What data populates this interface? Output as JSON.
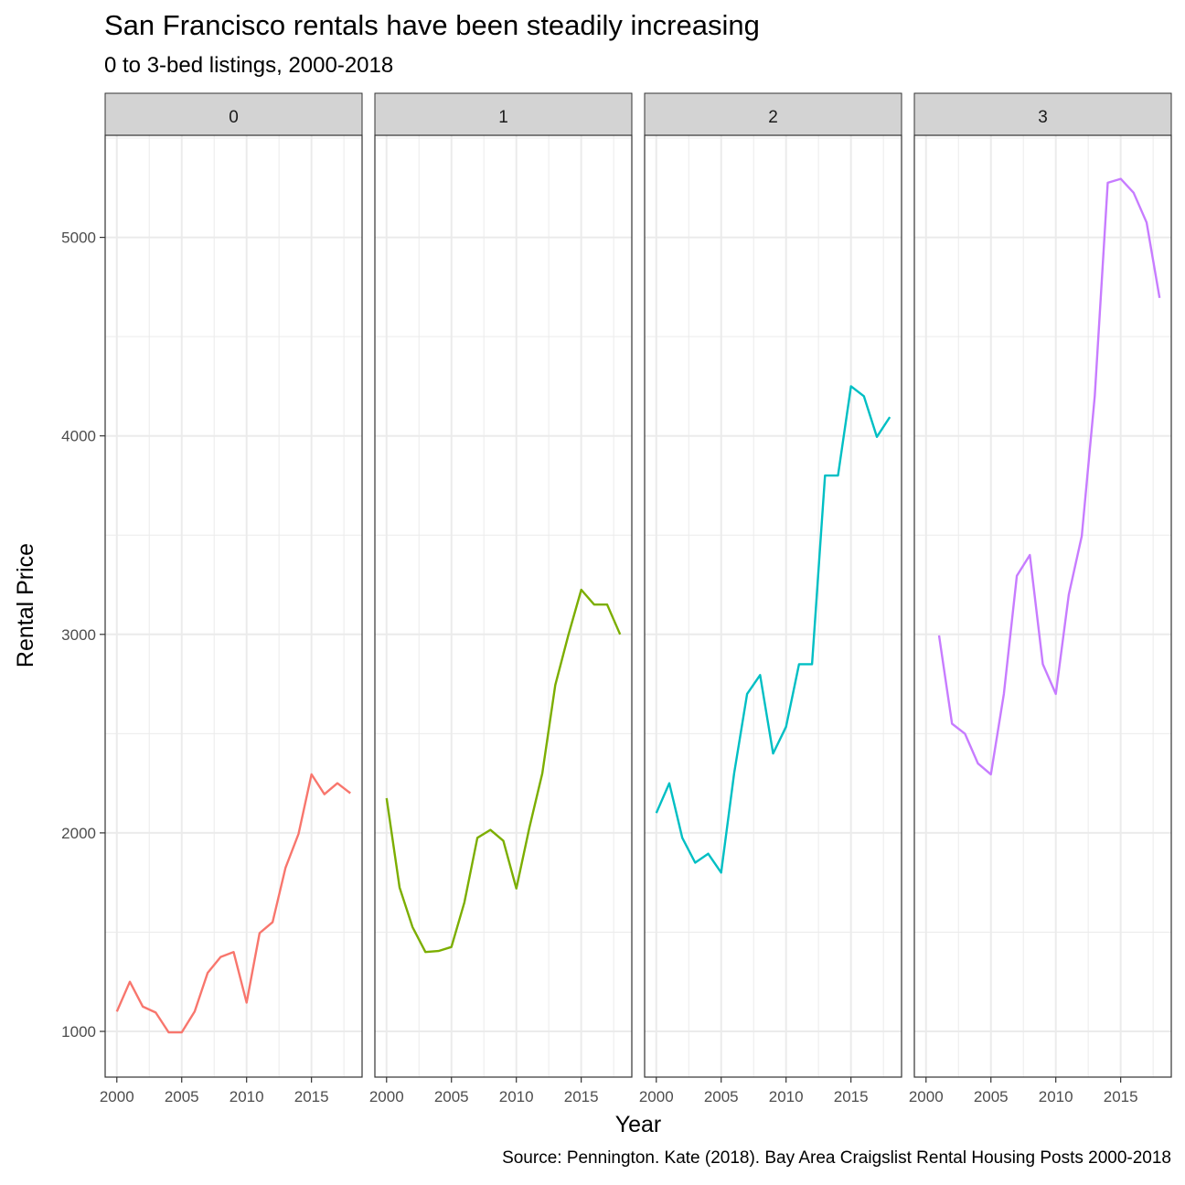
{
  "chart_data": {
    "type": "line",
    "title": "San Francisco rentals have been steadily increasing",
    "subtitle": "0 to 3-bed listings, 2000-2018",
    "caption": "Source: Pennington. Kate (2018). Bay Area Craigslist Rental Housing Posts 2000-2018",
    "xlabel": "Year",
    "ylabel": "Rental Price",
    "xlim": [
      2000,
      2018
    ],
    "ylim": [
      1000,
      5300
    ],
    "x_ticks": [
      2000,
      2005,
      2010,
      2015
    ],
    "y_ticks": [
      1000,
      2000,
      3000,
      4000,
      5000
    ],
    "grid": true,
    "facets": [
      {
        "label": "0",
        "color": "#F8766D",
        "x": [
          2000,
          2001,
          2002,
          2003,
          2004,
          2005,
          2006,
          2007,
          2008,
          2009,
          2010,
          2011,
          2012,
          2013,
          2014,
          2015,
          2016,
          2017,
          2018
        ],
        "values": [
          1100,
          1250,
          1125,
          1095,
          995,
          995,
          1100,
          1295,
          1375,
          1400,
          1145,
          1495,
          1550,
          1825,
          1995,
          2295,
          2195,
          2250,
          2200
        ]
      },
      {
        "label": "1",
        "color": "#7CAE00",
        "x": [
          2000,
          2001,
          2002,
          2003,
          2004,
          2005,
          2006,
          2007,
          2008,
          2009,
          2010,
          2011,
          2012,
          2013,
          2014,
          2015,
          2016,
          2017,
          2018
        ],
        "values": [
          2175,
          1725,
          1525,
          1400,
          1405,
          1425,
          1650,
          1975,
          2015,
          1960,
          1720,
          2025,
          2300,
          2745,
          2995,
          3225,
          3150,
          3150,
          3000
        ]
      },
      {
        "label": "2",
        "color": "#00BFC4",
        "x": [
          2000,
          2001,
          2002,
          2003,
          2004,
          2005,
          2006,
          2007,
          2008,
          2009,
          2010,
          2011,
          2012,
          2013,
          2014,
          2015,
          2016,
          2017,
          2018
        ],
        "values": [
          2100,
          2250,
          1975,
          1850,
          1895,
          1800,
          2300,
          2700,
          2795,
          2400,
          2535,
          2850,
          2850,
          3800,
          3800,
          4250,
          4200,
          3995,
          4095
        ]
      },
      {
        "label": "3",
        "color": "#C77CFF",
        "x": [
          2001,
          2002,
          2003,
          2004,
          2005,
          2006,
          2007,
          2008,
          2009,
          2010,
          2011,
          2012,
          2013,
          2014,
          2015,
          2016,
          2017,
          2018
        ],
        "values": [
          2995,
          2550,
          2500,
          2350,
          2295,
          2700,
          3295,
          3400,
          2850,
          2700,
          3200,
          3495,
          4200,
          5275,
          5295,
          5225,
          5075,
          4695
        ]
      }
    ]
  }
}
